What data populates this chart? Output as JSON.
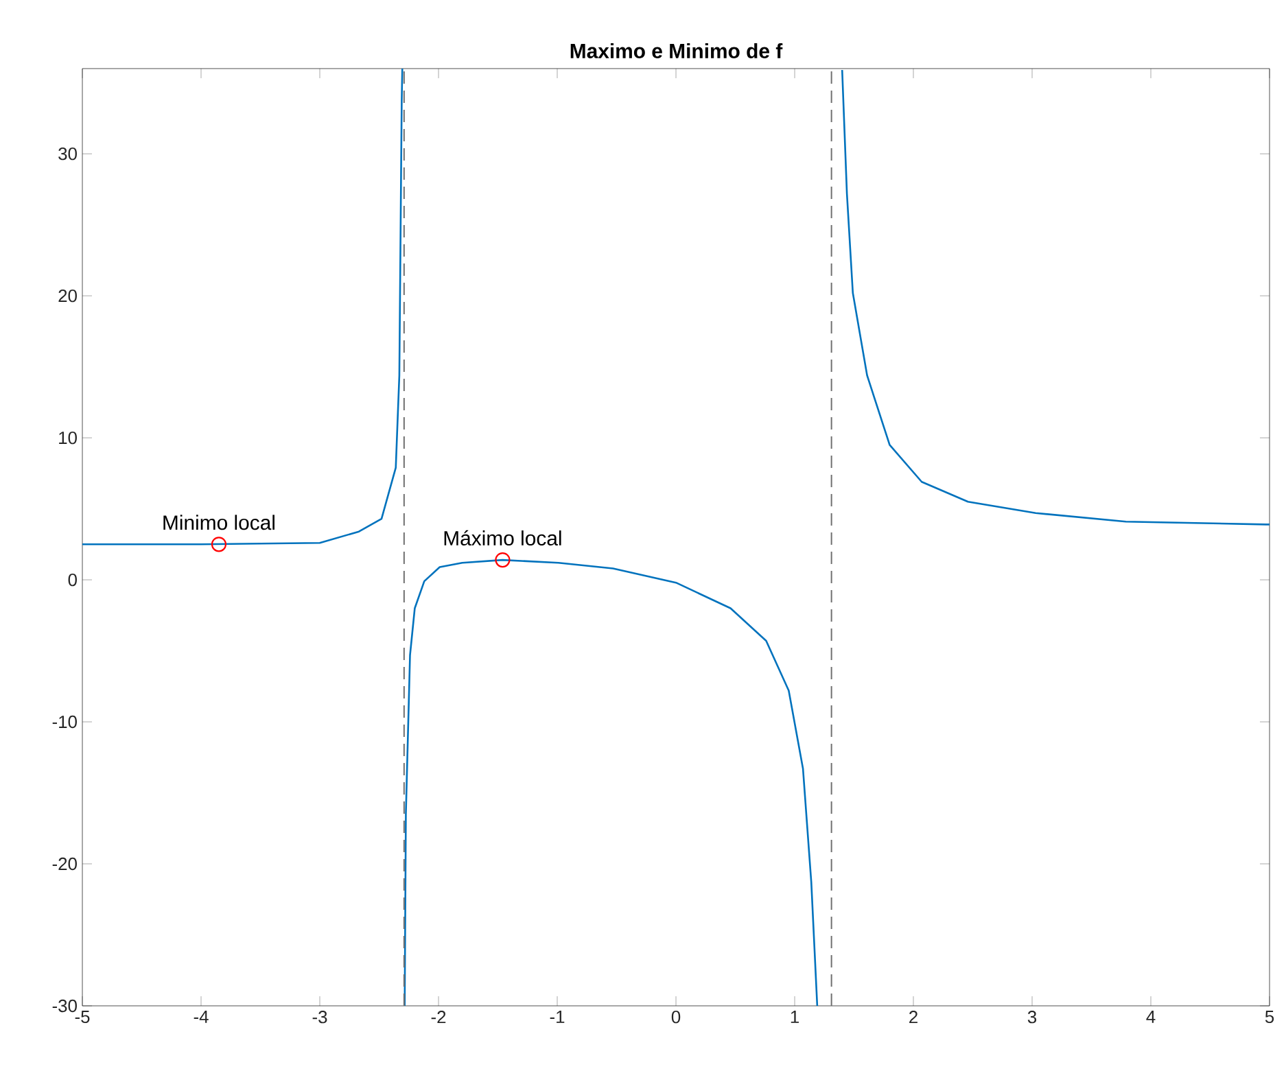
{
  "chart_data": {
    "type": "line",
    "title": "Maximo e Minimo de f",
    "xlim": [
      -5,
      5
    ],
    "ylim": [
      -30,
      36
    ],
    "xticks": [
      -5,
      -4,
      -3,
      -2,
      -1,
      0,
      1,
      2,
      3,
      4,
      5
    ],
    "yticks": [
      -30,
      -20,
      -10,
      0,
      10,
      20,
      30
    ],
    "grid": false,
    "series": [
      {
        "color": "#0072bd",
        "x": [
          -5,
          -4,
          -3,
          -2.67,
          -2.48,
          -2.36,
          -2.33,
          -2.31,
          -2.305
        ],
        "values": [
          2.5,
          2.5,
          2.6,
          3.4,
          4.3,
          7.9,
          14.4,
          33.7,
          36
        ]
      },
      {
        "color": "#0072bd",
        "x": [
          -2.285,
          -2.275,
          -2.24,
          -2.2,
          -2.12,
          -1.99,
          -1.8,
          -1.46,
          -0.99,
          -0.53,
          0,
          0.46,
          0.76,
          0.95,
          1.07,
          1.14,
          1.19
        ],
        "values": [
          -30,
          -16.5,
          -5.3,
          -2,
          -0.1,
          0.9,
          1.2,
          1.4,
          1.2,
          0.8,
          -0.2,
          -2,
          -4.3,
          -7.8,
          -13.3,
          -21.3,
          -30
        ]
      },
      {
        "color": "#0072bd",
        "x": [
          1.4,
          1.44,
          1.49,
          1.61,
          1.8,
          2.07,
          2.46,
          3.03,
          3.79,
          4.97,
          5
        ],
        "values": [
          35.9,
          27.2,
          20.2,
          14.4,
          9.5,
          6.9,
          5.5,
          4.7,
          4.1,
          3.9,
          3.9
        ]
      },
      {
        "type": "scatter",
        "marker": "circle",
        "color": "#ff0000",
        "x": [
          -3.85,
          -1.46
        ],
        "values": [
          2.5,
          1.4
        ]
      }
    ],
    "ref_lines": [
      {
        "axis": "x",
        "value": -2.29,
        "color": "#707070",
        "line_style": "dashed"
      },
      {
        "axis": "x",
        "value": 1.31,
        "color": "#707070",
        "line_style": "dashed"
      }
    ],
    "annotations": [
      {
        "text": "Minimo local",
        "x": -3.85,
        "y": 2.5
      },
      {
        "text": "Máximo local",
        "x": -1.46,
        "y": 1.4
      }
    ]
  }
}
